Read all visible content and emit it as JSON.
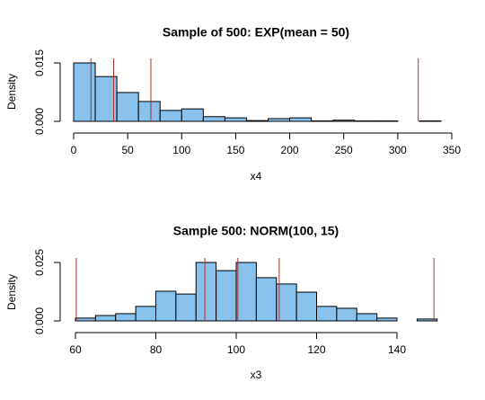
{
  "chart_data": [
    {
      "type": "histogram",
      "title": "Sample of 500: EXP(mean = 50)",
      "x_label": "x4",
      "y_label": "Density",
      "bins": [
        0,
        20,
        40,
        60,
        80,
        100,
        120,
        140,
        160,
        180,
        200,
        220,
        240,
        260,
        280,
        300,
        320,
        340
      ],
      "values": [
        0.015,
        0.0115,
        0.0074,
        0.0051,
        0.0028,
        0.0032,
        0.0012,
        0.0009,
        0.0002,
        0.0007,
        0.0009,
        0.0001,
        0.0003,
        0.0001,
        0.0001,
        0,
        0.0001
      ],
      "color": "#87c1ec",
      "vlines": [
        16,
        37,
        71.5,
        319
      ],
      "vline_color": "#b03030",
      "xlim": [
        0,
        350
      ],
      "xticks": [
        0,
        50,
        100,
        150,
        200,
        250,
        300,
        350
      ],
      "ylim": [
        0,
        0.015
      ],
      "yticks": [
        {
          "value": 0,
          "label": "0.000"
        },
        {
          "value": 0.015,
          "label": "0.015"
        }
      ]
    },
    {
      "type": "histogram",
      "title": "Sample 500: NORM(100, 15)",
      "x_label": "x3",
      "y_label": "Density",
      "bins": [
        60,
        65,
        70,
        75,
        80,
        85,
        90,
        95,
        100,
        105,
        110,
        115,
        120,
        125,
        130,
        135,
        140,
        145,
        150
      ],
      "values": [
        0.0012,
        0.0023,
        0.0031,
        0.0062,
        0.0127,
        0.0115,
        0.025,
        0.0215,
        0.025,
        0.0185,
        0.0158,
        0.0123,
        0.0062,
        0.0054,
        0.0031,
        0.0012,
        0,
        0.0008
      ],
      "color": "#87c1ec",
      "vlines": [
        60.2,
        92.2,
        100.4,
        110.7,
        149.2
      ],
      "vline_color": "#b03030",
      "xlim": [
        60,
        140
      ],
      "xticks": [
        60,
        80,
        100,
        120,
        140
      ],
      "ylim": [
        0,
        0.025
      ],
      "yticks": [
        {
          "value": 0,
          "label": "0.000"
        },
        {
          "value": 0.025,
          "label": "0.025"
        }
      ]
    }
  ]
}
